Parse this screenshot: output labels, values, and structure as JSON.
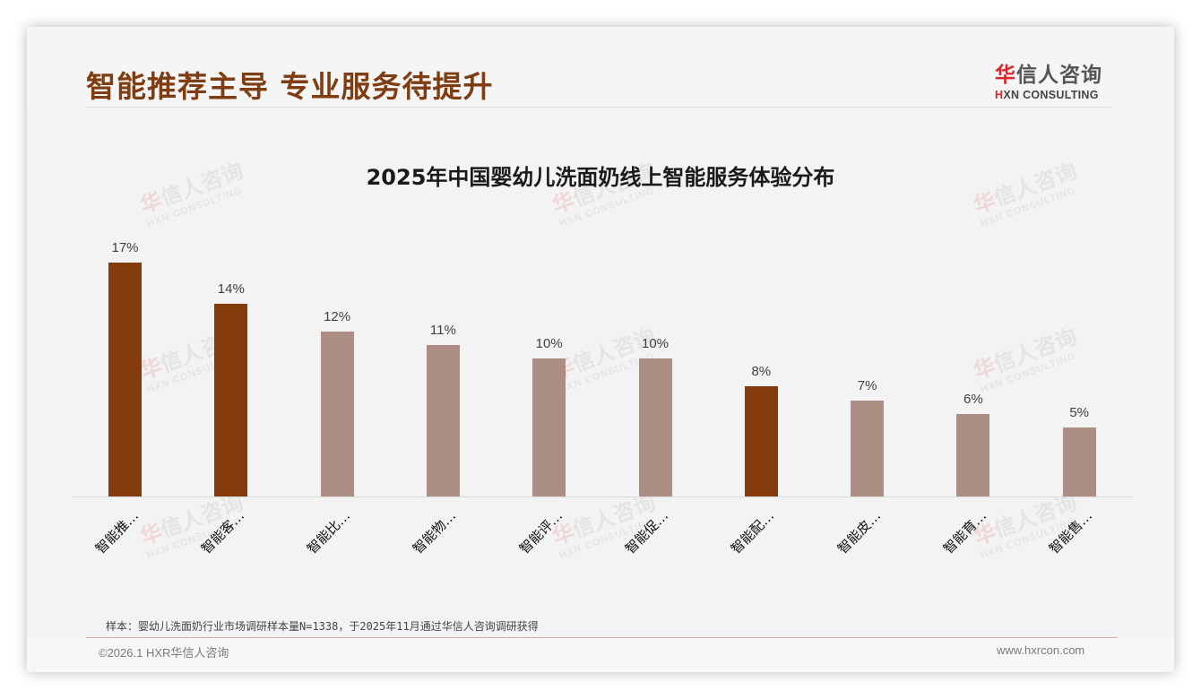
{
  "header": {
    "title": "智能推荐主导 专业服务待提升",
    "logo": {
      "cn_highlight": "华",
      "cn_rest": "信人咨询",
      "en_highlight": "H",
      "en_rest": "XN CONSULTING"
    }
  },
  "colors": {
    "highlight_bar": "#843c0c",
    "normal_bar": "#ad8e84",
    "title": "#7e3d12",
    "logo_red": "#d7262c"
  },
  "chart_data": {
    "type": "bar",
    "title": "2025年中国婴幼儿洗面奶线上智能服务体验分布",
    "categories": [
      "智能推…",
      "智能客…",
      "智能比…",
      "智能物…",
      "智能评…",
      "智能促…",
      "智能配…",
      "智能皮…",
      "智能育…",
      "智能售…"
    ],
    "values": [
      17,
      14,
      12,
      11,
      10,
      10,
      8,
      7,
      6,
      5
    ],
    "value_labels": [
      "17%",
      "14%",
      "12%",
      "11%",
      "10%",
      "10%",
      "8%",
      "7%",
      "6%",
      "5%"
    ],
    "highlighted": [
      true,
      true,
      false,
      false,
      false,
      false,
      true,
      false,
      false,
      false
    ],
    "xlabel": "",
    "ylabel": "",
    "ylim": [
      0,
      20
    ],
    "unit": "%",
    "grid": false,
    "legend": null
  },
  "footer": {
    "note": "样本：婴幼儿洗面奶行业市场调研样本量N=1338，于2025年11月通过华信人咨询调研获得",
    "copyright": "©2026.1 HXR华信人咨询",
    "website": "www.hxrcon.com"
  },
  "watermark": {
    "cn_highlight": "华",
    "cn_rest": "信人咨询",
    "en": "HXN CONSULTING"
  }
}
